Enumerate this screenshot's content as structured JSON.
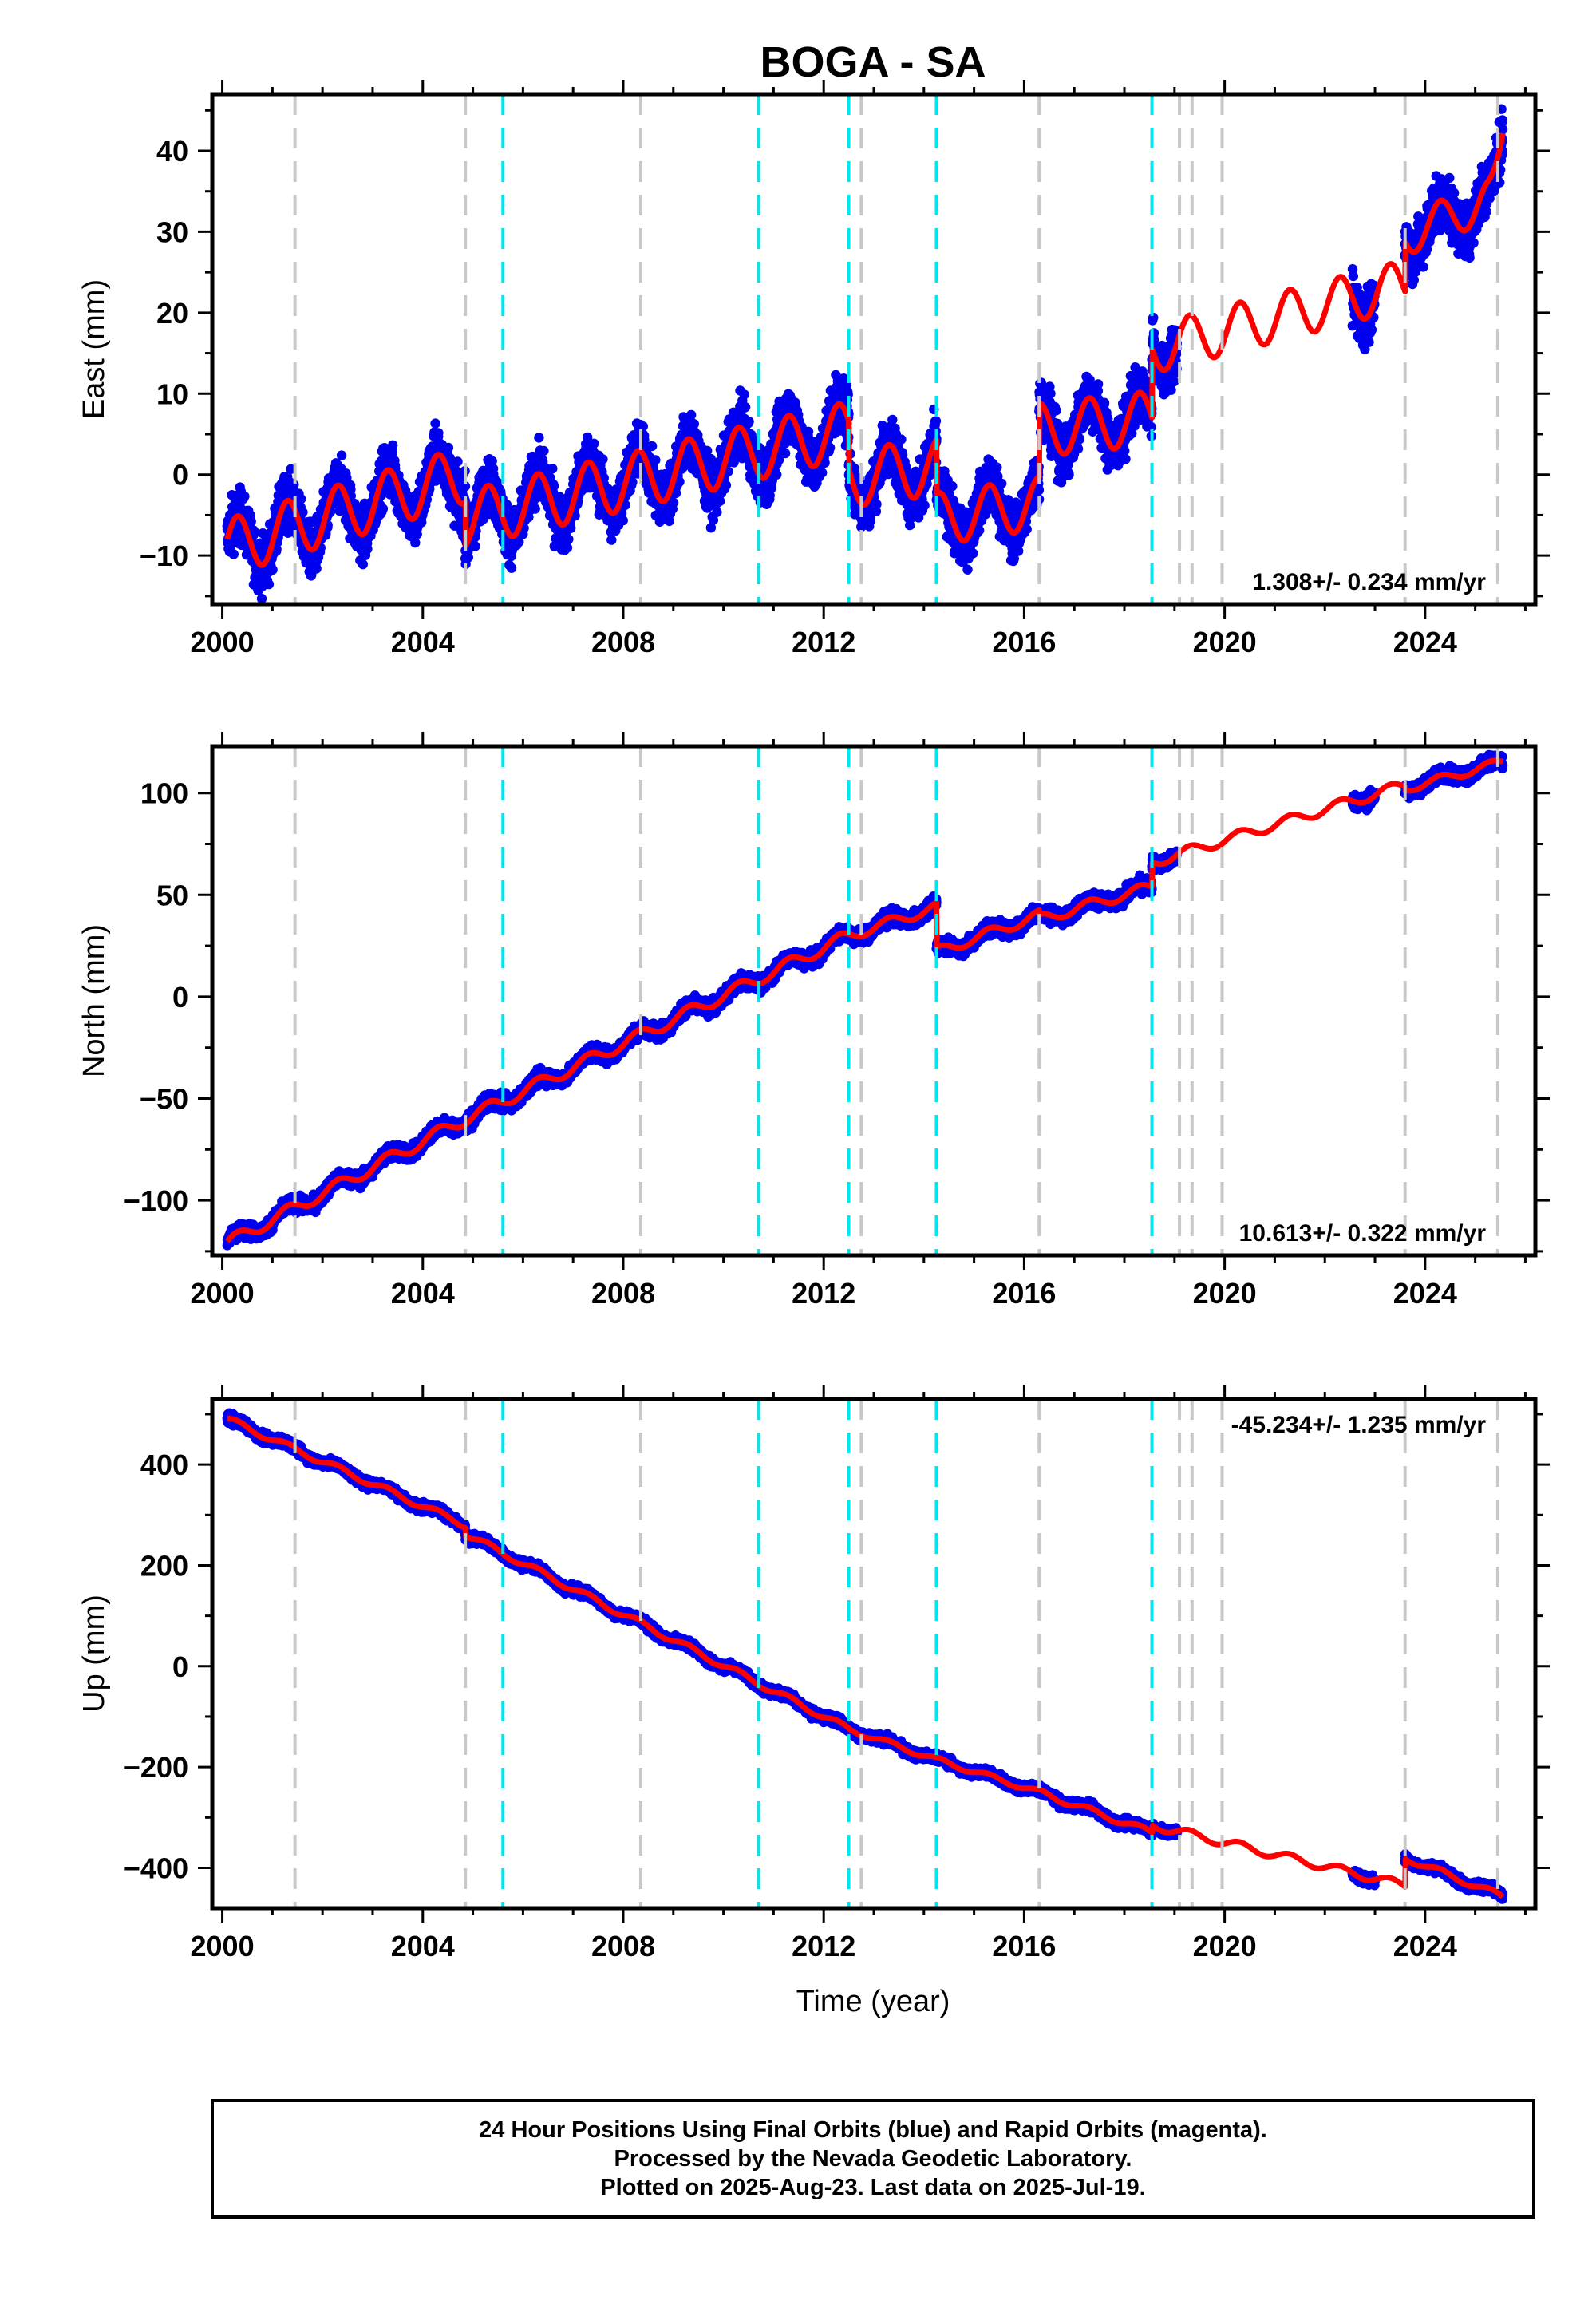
{
  "figure": {
    "title": "BOGA - SA",
    "xlabel": "Time (year)",
    "footer": [
      "24 Hour Positions Using Final Orbits (blue) and Rapid Orbits (magenta).",
      "Processed by the Nevada Geodetic Laboratory.",
      "Plotted on 2025-Aug-23. Last data on 2025-Jul-19."
    ]
  },
  "colors": {
    "data": "#0000ee",
    "model": "#ff0000",
    "equipment_change": "#c8c8c8",
    "earthquake": "#00e5ee"
  },
  "chart_data": [
    {
      "type": "scatter",
      "ylabel": "East (mm)",
      "xlim": [
        1999.8,
        2026.2
      ],
      "ylim": [
        -16,
        47
      ],
      "xticks": [
        2000,
        2004,
        2008,
        2012,
        2016,
        2020,
        2024
      ],
      "yticks": [
        -10,
        0,
        10,
        20,
        30,
        40
      ],
      "rate": "1.308+/- 0.234 mm/yr",
      "rate_position": "bottom-right",
      "scatter": 2.6,
      "segments": [
        {
          "x0": 2000.1,
          "x1": 2004.85,
          "y0": -9,
          "y1": 0,
          "amp": 3.5
        },
        {
          "x0": 2004.85,
          "x1": 2012.5,
          "y0": -5.5,
          "y1": 5.5,
          "amp": 3.5
        },
        {
          "x0": 2012.5,
          "x1": 2014.25,
          "y0": -0.5,
          "y1": 1.0,
          "amp": 3.5
        },
        {
          "x0": 2014.25,
          "x1": 2016.3,
          "y0": -5.5,
          "y1": -3.5,
          "amp": 3.2
        },
        {
          "x0": 2016.3,
          "x1": 2018.55,
          "y0": 5.5,
          "y1": 7.0,
          "amp": 3.3
        },
        {
          "x0": 2018.55,
          "x1": 2023.6,
          "y0": 15.5,
          "y1": 23.5,
          "amp": 3.0
        },
        {
          "x0": 2023.6,
          "x1": 2025.5,
          "y0": 29.5,
          "y1": 34.5,
          "amp": 2.5
        }
      ],
      "data_ranges": [
        [
          2000.1,
          2018.62
        ],
        [
          2018.72,
          2019.05
        ],
        [
          2022.55,
          2023.0
        ],
        [
          2023.6,
          2025.55
        ]
      ],
      "final_uptick": {
        "from": 2025.25,
        "to": 42
      }
    },
    {
      "type": "scatter",
      "ylabel": "North (mm)",
      "xlim": [
        1999.8,
        2026.2
      ],
      "ylim": [
        -127,
        123
      ],
      "xticks": [
        2000,
        2004,
        2008,
        2012,
        2016,
        2020,
        2024
      ],
      "yticks": [
        -100,
        -50,
        0,
        50,
        100
      ],
      "rate": "10.613+/- 0.322 mm/yr",
      "rate_position": "bottom-right",
      "scatter": 2.8,
      "segments": [
        {
          "x0": 2000.1,
          "x1": 2004.85,
          "y0": -121,
          "y1": -60,
          "amp": 3
        },
        {
          "x0": 2004.85,
          "x1": 2012.5,
          "y0": -60,
          "y1": 30,
          "amp": 3
        },
        {
          "x0": 2012.5,
          "x1": 2014.25,
          "y0": 30,
          "y1": 44,
          "amp": 2.5
        },
        {
          "x0": 2014.25,
          "x1": 2016.3,
          "y0": 22,
          "y1": 40,
          "amp": 2.5
        },
        {
          "x0": 2016.3,
          "x1": 2018.55,
          "y0": 38,
          "y1": 54,
          "amp": 2.5
        },
        {
          "x0": 2018.55,
          "x1": 2023.6,
          "y0": 66,
          "y1": 104,
          "amp": 2.5
        },
        {
          "x0": 2023.6,
          "x1": 2025.5,
          "y0": 102,
          "y1": 115,
          "amp": 2
        }
      ],
      "data_ranges": [
        [
          2000.1,
          2018.62
        ],
        [
          2018.72,
          2019.05
        ],
        [
          2022.55,
          2023.0
        ],
        [
          2023.6,
          2025.55
        ]
      ],
      "final_uptick": null
    },
    {
      "type": "scatter",
      "ylabel": "Up (mm)",
      "xlim": [
        1999.8,
        2026.2
      ],
      "ylim": [
        -480,
        530
      ],
      "xticks": [
        2000,
        2004,
        2008,
        2012,
        2016,
        2020,
        2024
      ],
      "yticks": [
        -400,
        -200,
        0,
        200,
        400
      ],
      "rate": "-45.234+/- 1.235 mm/yr",
      "rate_position": "top-right",
      "scatter": 7,
      "segments": [
        {
          "x0": 2000.1,
          "x1": 2004.85,
          "y0": 490,
          "y1": 280,
          "amp": 6
        },
        {
          "x0": 2004.85,
          "x1": 2012.5,
          "y0": 262,
          "y1": -125,
          "amp": 6
        },
        {
          "x0": 2012.5,
          "x1": 2014.25,
          "y0": -125,
          "y1": -185,
          "amp": 5
        },
        {
          "x0": 2014.25,
          "x1": 2016.3,
          "y0": -185,
          "y1": -250,
          "amp": 5
        },
        {
          "x0": 2016.3,
          "x1": 2018.55,
          "y0": -250,
          "y1": -330,
          "amp": 6
        },
        {
          "x0": 2018.55,
          "x1": 2023.6,
          "y0": -315,
          "y1": -435,
          "amp": 8
        },
        {
          "x0": 2023.6,
          "x1": 2025.5,
          "y0": -380,
          "y1": -455,
          "amp": 6
        }
      ],
      "data_ranges": [
        [
          2000.1,
          2018.62
        ],
        [
          2018.72,
          2019.05
        ],
        [
          2022.55,
          2023.0
        ],
        [
          2023.6,
          2025.55
        ]
      ],
      "final_uptick": null
    }
  ],
  "equipment_changes": [
    2001.45,
    2004.85,
    2008.35,
    2012.75,
    2016.3,
    2019.1,
    2019.35,
    2019.95,
    2023.6,
    2025.45
  ],
  "earthquakes": [
    2005.6,
    2010.7,
    2012.5,
    2014.25,
    2018.55
  ]
}
